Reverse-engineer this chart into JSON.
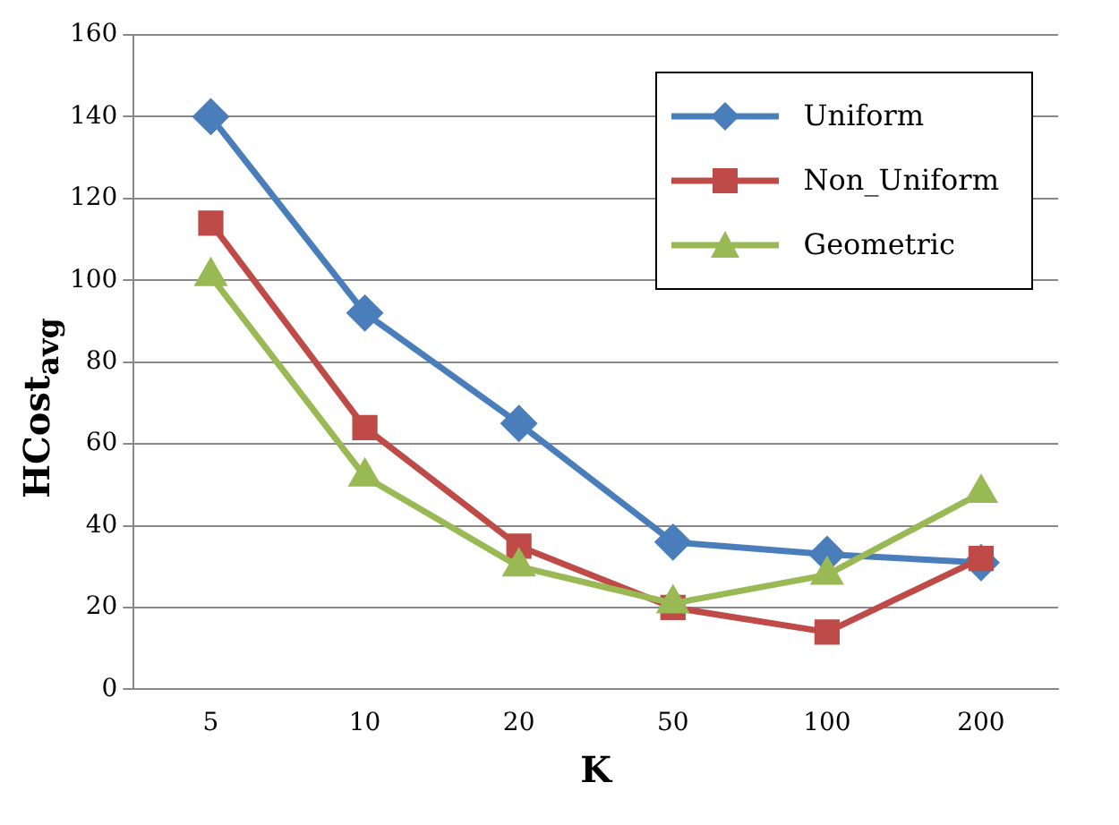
{
  "chart_data": {
    "type": "line",
    "xlabel": "K",
    "ylabel": "HCost$_{avg}$",
    "categories": [
      "5",
      "10",
      "20",
      "50",
      "100",
      "200"
    ],
    "ylim": [
      0,
      160
    ],
    "yticks": [
      0,
      20,
      40,
      60,
      80,
      100,
      120,
      140,
      160
    ],
    "grid": "y",
    "legend": "top right",
    "line_style": "solid",
    "series": [
      {
        "name": "Uniform",
        "color": "#4a7ebb",
        "marker": "diamond",
        "values": [
          140,
          92,
          65,
          36,
          33,
          31
        ]
      },
      {
        "name": "Non_Uniform",
        "color": "#be4b48",
        "marker": "square",
        "values": [
          114,
          64,
          35,
          20,
          14,
          32
        ]
      },
      {
        "name": "Geometric",
        "color": "#98b954",
        "marker": "triangle",
        "values": [
          101,
          52,
          30,
          21,
          28,
          48
        ]
      }
    ]
  }
}
